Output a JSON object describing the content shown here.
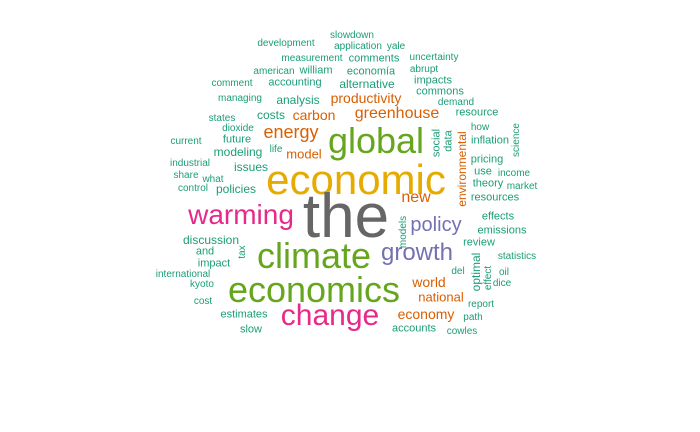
{
  "colors": {
    "teal": "#1b9e77",
    "orange": "#d95f02",
    "purple": "#7570b3",
    "pink": "#e7298a",
    "green": "#66a61e",
    "gold": "#e6ab02",
    "gray": "#666666"
  },
  "words": {
    "the": "the",
    "economic": "economic",
    "global": "global",
    "climate": "climate",
    "economics": "economics",
    "change": "change",
    "warming": "warming",
    "growth": "growth",
    "policy": "policy",
    "energy": "energy",
    "greenhouse": "greenhouse",
    "productivity": "productivity",
    "carbon": "carbon",
    "new": "new",
    "model": "model",
    "world": "world",
    "economy": "economy",
    "national": "national",
    "accounts": "accounts",
    "cowles": "cowles",
    "slowdown": "slowdown",
    "development": "development",
    "application": "application",
    "yale": "yale",
    "measurement": "measurement",
    "comments": "comments",
    "uncertainty": "uncertainty",
    "american": "american",
    "william": "william",
    "economia": "economía",
    "abrupt": "abrupt",
    "comment": "comment",
    "accounting": "accounting",
    "alternative": "alternative",
    "impacts": "impacts",
    "commons": "commons",
    "managing": "managing",
    "analysis": "analysis",
    "demand": "demand",
    "states": "states",
    "costs": "costs",
    "resource": "resource",
    "dioxide": "dioxide",
    "how": "how",
    "current": "current",
    "future": "future",
    "life": "life",
    "social": "social",
    "data": "data",
    "inflation": "inflation",
    "science": "science",
    "modeling": "modeling",
    "environmental": "environmental",
    "industrial": "industrial",
    "issues": "issues",
    "pricing": "pricing",
    "share": "share",
    "use": "use",
    "income": "income",
    "what": "what",
    "theory": "theory",
    "market": "market",
    "control": "control",
    "policies": "policies",
    "resources": "resources",
    "effects": "effects",
    "models": "models",
    "emissions": "emissions",
    "discussion": "discussion",
    "review": "review",
    "and": "and",
    "tax": "tax",
    "statistics": "statistics",
    "impact": "impact",
    "optimal": "optimal",
    "international": "international",
    "del": "del",
    "oil": "oil",
    "kyoto": "kyoto",
    "effect": "effect",
    "dice": "dice",
    "cost": "cost",
    "report": "report",
    "estimates": "estimates",
    "path": "path",
    "slow": "slow"
  }
}
